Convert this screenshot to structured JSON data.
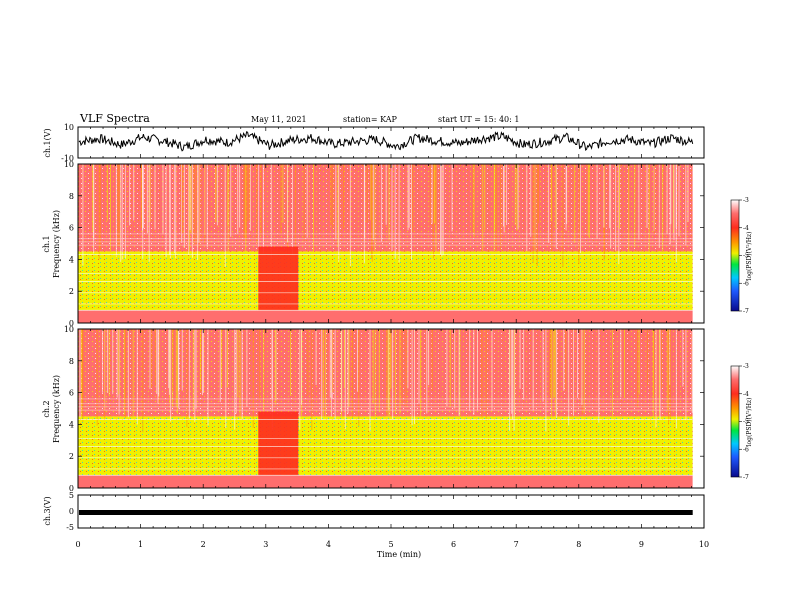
{
  "header": {
    "title": "VLF Spectra",
    "date": "May 11, 2021",
    "station": "station= KAP",
    "start": "start  UT  =   15: 40: 1"
  },
  "colors": {
    "spectrum_scale": [
      "#0a0a8c",
      "#1e5aff",
      "#00c8ff",
      "#00e640",
      "#7ae600",
      "#f0f000",
      "#ff9600",
      "#ff2d1e",
      "#ffffff"
    ],
    "trace": "#000000"
  },
  "chart_data": [
    {
      "type": "line",
      "panel": "ch1-waveform",
      "ylabel": "ch.1(V)",
      "ylim": [
        -10,
        10
      ],
      "yticks": [
        "10",
        "-10"
      ],
      "xlim": [
        0,
        10
      ],
      "data_extent_min": 9.82,
      "series": [
        {
          "values": [
            0.5,
            2.5,
            -1.5,
            3.5,
            1.0,
            -3.0,
            2.0,
            0.0,
            4.5,
            -2.0,
            1.5,
            3.0,
            -1.0,
            0.5,
            2.0,
            -2.5,
            3.0,
            1.0,
            -0.5,
            2.5,
            4.0,
            -1.5,
            0.5,
            3.5,
            -3.5,
            1.0,
            2.0,
            -1.0,
            3.0,
            0.0
          ]
        }
      ]
    },
    {
      "type": "heatmap",
      "panel": "ch1-spectrogram",
      "ylabel": "ch.1\nFrequency  (kHz)",
      "ylim": [
        0,
        10
      ],
      "yticks": [
        "0",
        "2",
        "4",
        "6",
        "8",
        "10"
      ],
      "xlim": [
        0,
        10
      ],
      "data_extent_min": 9.82,
      "colorbar": {
        "label": "log(PSD)(V²/Hz)",
        "range": [
          -7,
          -3
        ],
        "ticks": [
          "-3",
          "-4",
          "-5",
          "-6",
          "-7"
        ]
      },
      "frequency_bands_kHz": [
        [
          0,
          0.8
        ],
        [
          0.8,
          4.5
        ],
        [
          4.5,
          10
        ]
      ],
      "band_log_psd": [
        -3.6,
        -4.9,
        -3.4
      ],
      "enhancement_interval_min": [
        2.88,
        3.52
      ]
    },
    {
      "type": "heatmap",
      "panel": "ch2-spectrogram",
      "ylabel": "ch.2\nFrequency  (kHz)",
      "ylim": [
        0,
        10
      ],
      "yticks": [
        "0",
        "2",
        "4",
        "6",
        "8",
        "10"
      ],
      "xlim": [
        0,
        10
      ],
      "data_extent_min": 9.82,
      "colorbar": {
        "label": "log(PSD)(V²/Hz)",
        "range": [
          -7,
          -3
        ],
        "ticks": [
          "-3",
          "-4",
          "-5",
          "-6",
          "-7"
        ]
      },
      "frequency_bands_kHz": [
        [
          0,
          0.8
        ],
        [
          0.8,
          4.5
        ],
        [
          4.5,
          10
        ]
      ],
      "band_log_psd": [
        -3.6,
        -4.9,
        -3.4
      ],
      "enhancement_interval_min": [
        2.88,
        3.52
      ]
    },
    {
      "type": "line",
      "panel": "ch3-waveform",
      "ylabel": "ch.3(V)",
      "ylim": [
        -5,
        5
      ],
      "yticks": [
        "5",
        "0",
        "-5"
      ],
      "xlim": [
        0,
        10
      ],
      "data_extent_min": 9.82,
      "series": [
        {
          "values": [
            -0.3,
            -0.3
          ]
        }
      ]
    }
  ],
  "xaxis": {
    "label": "Time  (min)",
    "ticks": [
      "0",
      "1",
      "2",
      "3",
      "4",
      "5",
      "6",
      "7",
      "8",
      "9",
      "10"
    ]
  }
}
